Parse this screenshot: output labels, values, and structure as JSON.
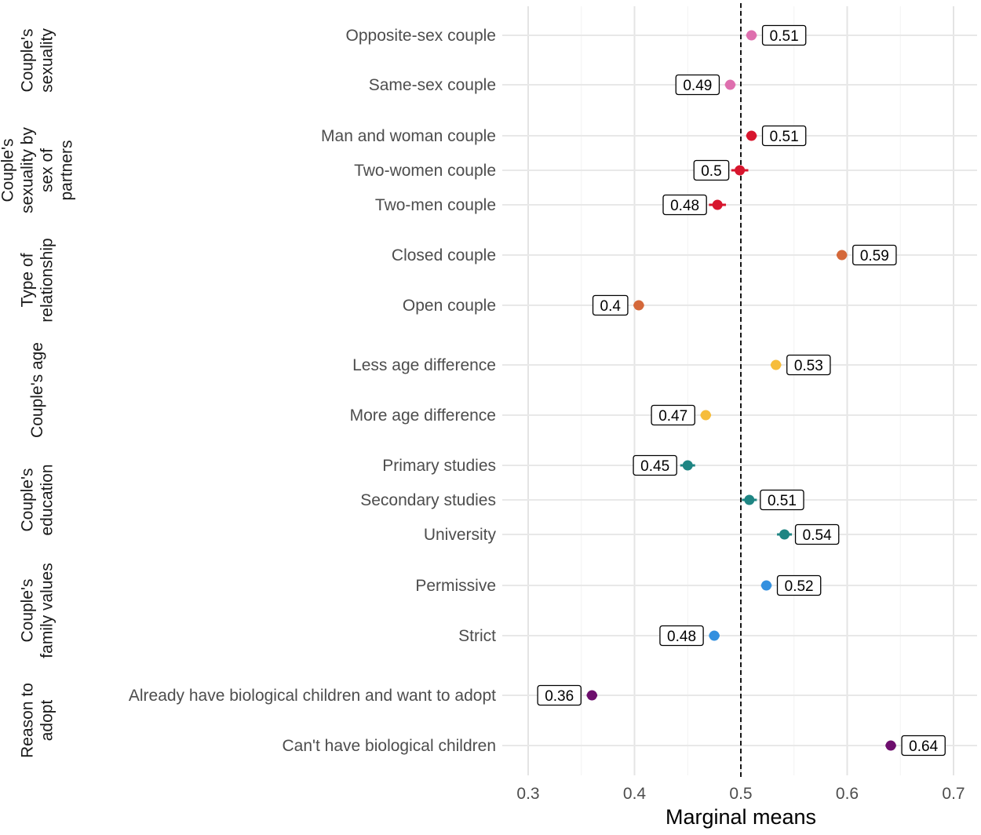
{
  "chart_data": {
    "type": "scatter",
    "xlabel": "Marginal means",
    "xlim": [
      0.28,
      0.72
    ],
    "x_ticks": [
      0.3,
      0.4,
      0.5,
      0.6,
      0.7
    ],
    "x_tick_labels": [
      "0.3",
      "0.4",
      "0.5",
      "0.6",
      "0.7"
    ],
    "reference_line": 0.5,
    "grid": true,
    "legend": "none",
    "groups": [
      {
        "label_lines": [
          "Couple's",
          "sexuality"
        ],
        "color": "#de6fae",
        "items": [
          {
            "label": "Opposite-sex couple",
            "value": 0.51,
            "value_label": "0.51",
            "ci": [
              0.505,
              0.515
            ]
          },
          {
            "label": "Same-sex couple",
            "value": 0.49,
            "value_label": "0.49",
            "ci": [
              0.485,
              0.495
            ]
          }
        ]
      },
      {
        "label_lines": [
          "Couple's",
          "sexuality by",
          "sex of",
          "partners"
        ],
        "color": "#d7152d",
        "items": [
          {
            "label": "Man and woman couple",
            "value": 0.51,
            "value_label": "0.51",
            "ci": [
              0.505,
              0.515
            ]
          },
          {
            "label": "Two-women couple",
            "value": 0.499,
            "value_label": "0.5",
            "ci": [
              0.491,
              0.507
            ]
          },
          {
            "label": "Two-men couple",
            "value": 0.478,
            "value_label": "0.48",
            "ci": [
              0.47,
              0.486
            ]
          }
        ]
      },
      {
        "label_lines": [
          "Type of",
          "relationship"
        ],
        "color": "#d4683a",
        "items": [
          {
            "label": "Closed couple",
            "value": 0.595,
            "value_label": "0.59",
            "ci": [
              0.59,
              0.6
            ]
          },
          {
            "label": "Open couple",
            "value": 0.404,
            "value_label": "0.4",
            "ci": [
              0.399,
              0.409
            ]
          }
        ]
      },
      {
        "label_lines": [
          "Couple's age"
        ],
        "color": "#f6bd3b",
        "items": [
          {
            "label": "Less age difference",
            "value": 0.533,
            "value_label": "0.53",
            "ci": [
              0.528,
              0.538
            ]
          },
          {
            "label": "More age difference",
            "value": 0.467,
            "value_label": "0.47",
            "ci": [
              0.462,
              0.472
            ]
          }
        ]
      },
      {
        "label_lines": [
          "Couple's",
          "education"
        ],
        "color": "#1e8583",
        "items": [
          {
            "label": "Primary studies",
            "value": 0.45,
            "value_label": "0.45",
            "ci": [
              0.443,
              0.457
            ]
          },
          {
            "label": "Secondary studies",
            "value": 0.508,
            "value_label": "0.51",
            "ci": [
              0.501,
              0.515
            ]
          },
          {
            "label": "University",
            "value": 0.541,
            "value_label": "0.54",
            "ci": [
              0.534,
              0.548
            ]
          }
        ]
      },
      {
        "label_lines": [
          "Couple's",
          "family values"
        ],
        "color": "#3390df",
        "items": [
          {
            "label": "Permissive",
            "value": 0.524,
            "value_label": "0.52",
            "ci": [
              0.519,
              0.529
            ]
          },
          {
            "label": "Strict",
            "value": 0.475,
            "value_label": "0.48",
            "ci": [
              0.47,
              0.48
            ]
          }
        ]
      },
      {
        "label_lines": [
          "Reason to",
          "adopt"
        ],
        "color": "#6e0f6e",
        "items": [
          {
            "label": "Already have biological children and want to adopt",
            "value": 0.36,
            "value_label": "0.36",
            "ci": [
              0.355,
              0.365
            ]
          },
          {
            "label": "Can't have biological children",
            "value": 0.641,
            "value_label": "0.64",
            "ci": [
              0.636,
              0.646
            ]
          }
        ]
      }
    ]
  }
}
